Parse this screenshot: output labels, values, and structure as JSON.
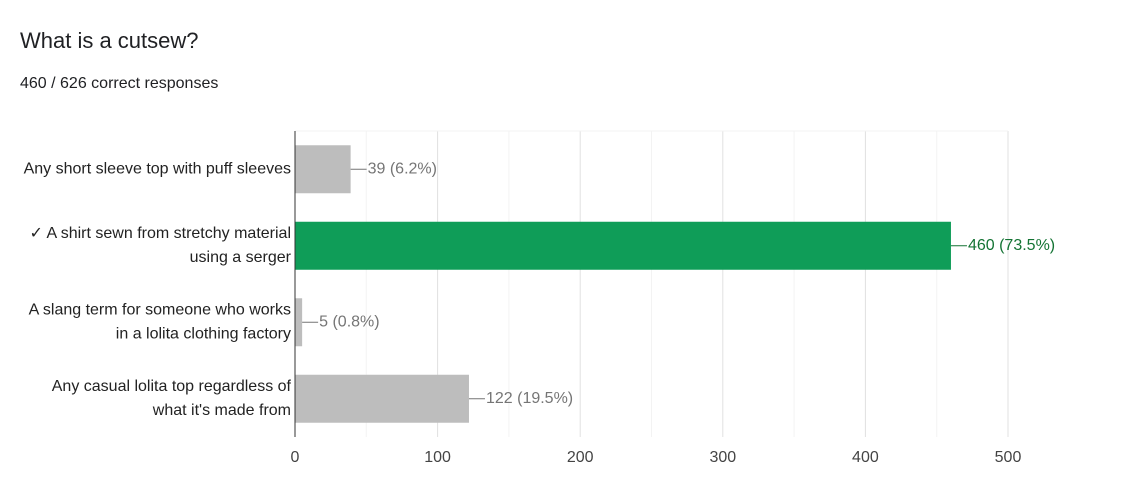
{
  "chart_data": {
    "type": "hbar",
    "title": "What is a cutsew?",
    "subtitle": "460 / 626 correct responses",
    "categories": [
      "Any short sleeve top with puff sleeves",
      "✓ A shirt sewn from stretchy material using a serger",
      "A slang term for someone who works in a lolita clothing factory",
      "Any casual lolita top regardless of what it's made from"
    ],
    "values": [
      39,
      460,
      5,
      122
    ],
    "value_labels": [
      "39 (6.2%)",
      "460 (73.5%)",
      "5 (0.8%)",
      "122 (19.5%)"
    ],
    "colors": [
      "#bdbdbd",
      "#0f9d58",
      "#bdbdbd",
      "#bdbdbd"
    ],
    "label_colors": [
      "#757575",
      "#137333",
      "#757575",
      "#757575"
    ],
    "xlim": [
      0,
      500
    ],
    "xticks": [
      0,
      100,
      200,
      300,
      400,
      500
    ],
    "minor_xticks": [
      50,
      150,
      250,
      350,
      450
    ],
    "grid": true
  }
}
